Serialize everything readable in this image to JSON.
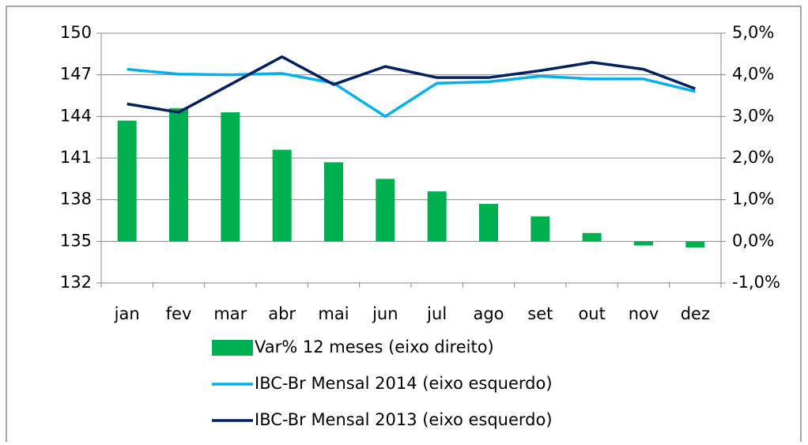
{
  "chart_data": {
    "type": "bar",
    "categories": [
      "jan",
      "fev",
      "mar",
      "abr",
      "mai",
      "jun",
      "jul",
      "ago",
      "set",
      "out",
      "nov",
      "dez"
    ],
    "series": [
      {
        "name": "Var% 12 meses (eixo direito)",
        "type": "bar",
        "axis": "y2",
        "color": "#00b050",
        "values": [
          2.9,
          3.2,
          3.1,
          2.2,
          1.9,
          1.5,
          1.2,
          0.9,
          0.6,
          0.2,
          -0.1,
          -0.15
        ]
      },
      {
        "name": "IBC-Br Mensal 2014 (eixo esquerdo)",
        "type": "line",
        "color": "#00b0f0",
        "values": [
          147.4,
          147.05,
          147.0,
          147.1,
          146.4,
          144.0,
          146.4,
          146.5,
          146.9,
          146.7,
          146.7,
          145.8
        ]
      },
      {
        "name": "IBC-Br Mensal 2013 (eixo esquerdo)",
        "type": "line",
        "color": "#002060",
        "values": [
          144.9,
          144.3,
          146.3,
          148.3,
          146.3,
          147.6,
          146.8,
          146.8,
          147.3,
          147.9,
          147.4,
          146.0
        ]
      }
    ],
    "ylim": [
      132,
      150
    ],
    "yticks": [
      132,
      135,
      138,
      141,
      144,
      147,
      150
    ],
    "y2lim": [
      -1,
      5
    ],
    "y2ticks": [
      {
        "value": -1,
        "label": "-1,0%"
      },
      {
        "value": 0,
        "label": "0,0%"
      },
      {
        "value": 1,
        "label": "1,0%"
      },
      {
        "value": 2,
        "label": "2,0%"
      },
      {
        "value": 3,
        "label": "3,0%"
      },
      {
        "value": 4,
        "label": "4,0%"
      },
      {
        "value": 5,
        "label": "5,0%"
      }
    ],
    "grid": true
  }
}
